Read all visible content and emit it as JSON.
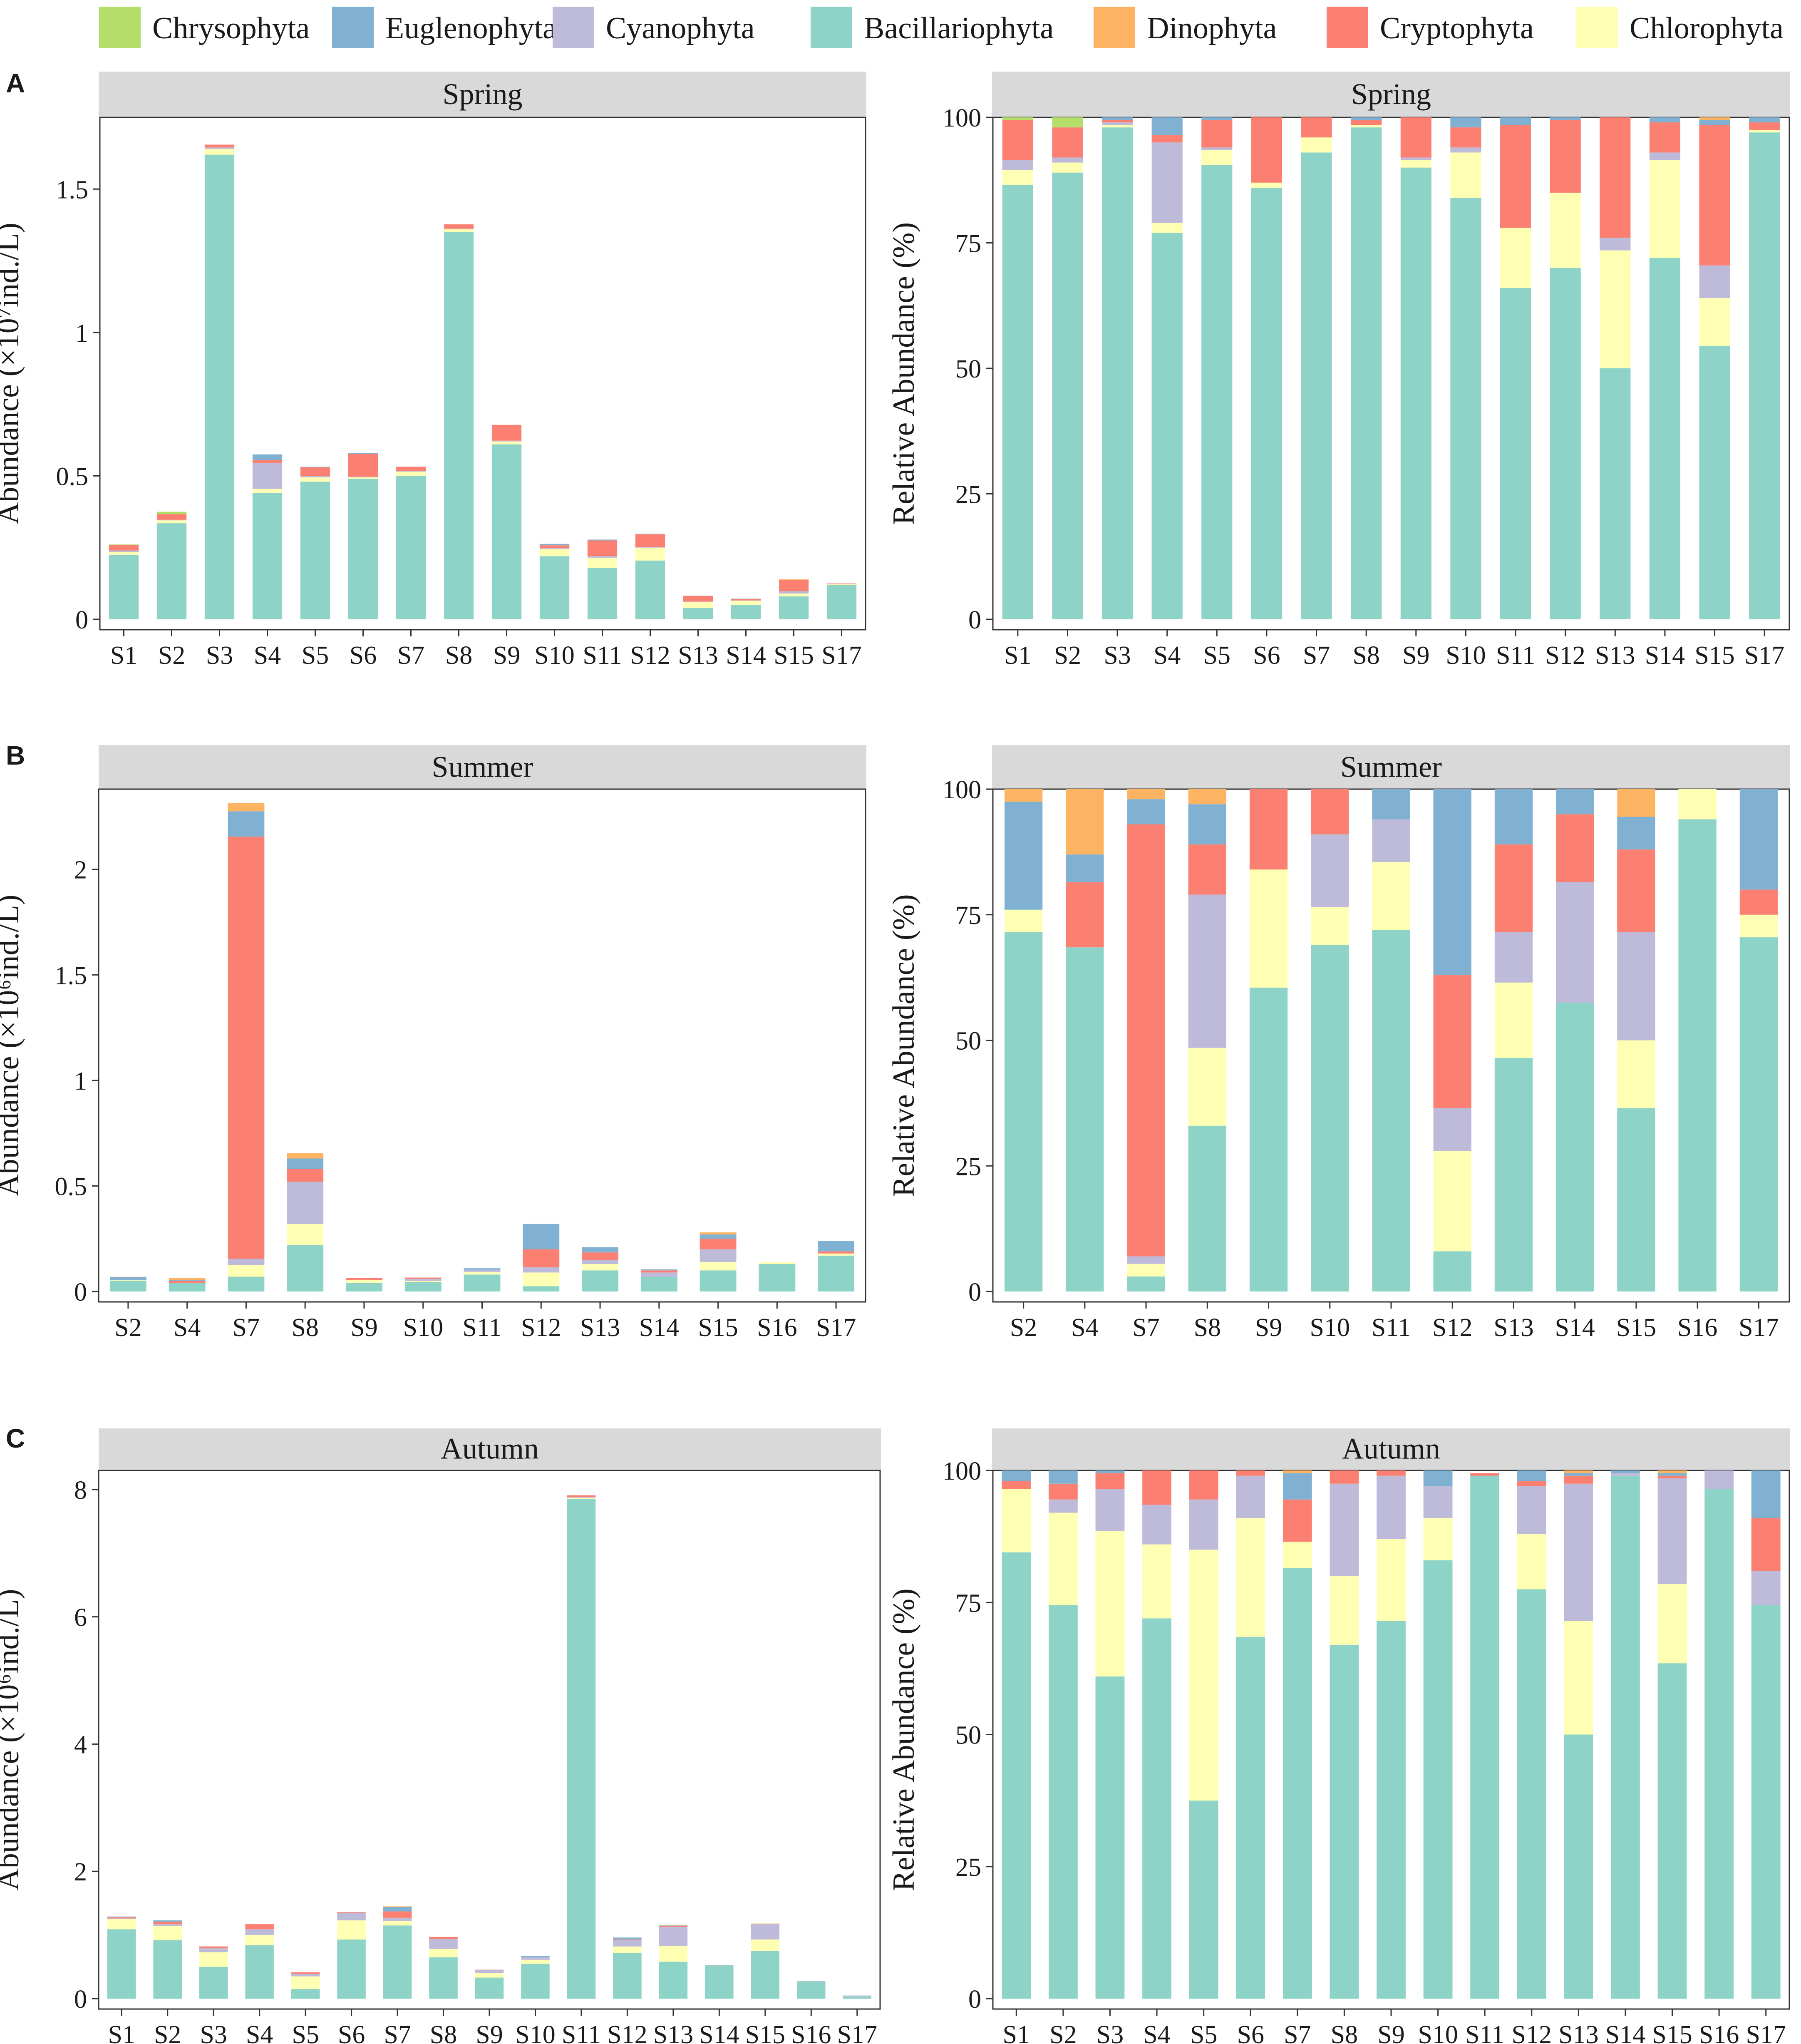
{
  "legend": [
    {
      "name": "Chrysophyta",
      "color": "#b3de69"
    },
    {
      "name": "Euglenophyta",
      "color": "#80b1d3"
    },
    {
      "name": "Cyanophyta",
      "color": "#bebada"
    },
    {
      "name": "Bacillariophyta",
      "color": "#8dd3c7"
    },
    {
      "name": "Dinophyta",
      "color": "#fdb462"
    },
    {
      "name": "Cryptophyta",
      "color": "#fb8072"
    },
    {
      "name": "Chlorophyta",
      "color": "#ffffb3"
    }
  ],
  "stack_order_bottom_to_top": [
    "Bacillariophyta",
    "Chlorophyta",
    "Cyanophyta",
    "Cryptophyta",
    "Euglenophyta",
    "Dinophyta",
    "Chrysophyta"
  ],
  "chart_data": [
    {
      "type": "bar",
      "stacked": true,
      "panel": "A",
      "title": "Spring",
      "ylabel": "Abundance (×10⁷ind./L)",
      "ylim": [
        0,
        1.75
      ],
      "yticks": [
        {
          "v": 0,
          "label": "0"
        },
        {
          "v": 0.5,
          "label": "0.5"
        },
        {
          "v": 1,
          "label": "1"
        },
        {
          "v": 1.5,
          "label": "1.5"
        }
      ],
      "categories": [
        "S1",
        "S2",
        "S3",
        "S4",
        "S5",
        "S6",
        "S7",
        "S8",
        "S9",
        "S10",
        "S11",
        "S12",
        "S13",
        "S14",
        "S15",
        "S17"
      ],
      "series": [
        {
          "name": "Bacillariophyta",
          "values": [
            0.225,
            0.335,
            1.62,
            0.44,
            0.48,
            0.49,
            0.5,
            1.35,
            0.61,
            0.22,
            0.18,
            0.205,
            0.04,
            0.05,
            0.08,
            0.12
          ]
        },
        {
          "name": "Chlorophyta",
          "values": [
            0.01,
            0.01,
            0.02,
            0.015,
            0.015,
            0.005,
            0.015,
            0.01,
            0.01,
            0.025,
            0.035,
            0.045,
            0.02,
            0.015,
            0.01,
            0.002
          ]
        },
        {
          "name": "Cyanophyta",
          "values": [
            0.005,
            0.002,
            0.005,
            0.09,
            0.005,
            0.002,
            0.002,
            0.002,
            0.003,
            0.003,
            0.005,
            0.002,
            0.002,
            0.001,
            0.008,
            0
          ]
        },
        {
          "name": "Cryptophyta",
          "values": [
            0.02,
            0.02,
            0.01,
            0.01,
            0.03,
            0.08,
            0.015,
            0.015,
            0.055,
            0.01,
            0.055,
            0.045,
            0.02,
            0.005,
            0.04,
            0.003
          ]
        },
        {
          "name": "Euglenophyta",
          "values": [
            0,
            0,
            0,
            0.02,
            0.002,
            0.002,
            0,
            0,
            0,
            0.005,
            0.003,
            0.001,
            0,
            0.001,
            0,
            0
          ]
        },
        {
          "name": "Dinophyta",
          "values": [
            0,
            0,
            0,
            0,
            0,
            0,
            0,
            0,
            0,
            0,
            0,
            0,
            0,
            0,
            0.002,
            0
          ]
        },
        {
          "name": "Chrysophyta",
          "values": [
            0.001,
            0.008,
            0,
            0,
            0,
            0,
            0,
            0,
            0,
            0,
            0,
            0,
            0,
            0,
            0,
            0
          ]
        }
      ]
    },
    {
      "type": "bar",
      "stacked": true,
      "panel": "A",
      "title": "Spring",
      "ylabel": "Relative Abundance (%)",
      "ylim": [
        0,
        100
      ],
      "yticks": [
        {
          "v": 0,
          "label": "0"
        },
        {
          "v": 25,
          "label": "25"
        },
        {
          "v": 50,
          "label": "50"
        },
        {
          "v": 75,
          "label": "75"
        },
        {
          "v": 100,
          "label": "100"
        }
      ],
      "categories": [
        "S1",
        "S2",
        "S3",
        "S4",
        "S5",
        "S6",
        "S7",
        "S8",
        "S9",
        "S10",
        "S11",
        "S12",
        "S13",
        "S14",
        "S15",
        "S17"
      ],
      "series": [
        {
          "name": "Bacillariophyta",
          "values": [
            86.5,
            89,
            98,
            77,
            90.5,
            86,
            93,
            98,
            90,
            84,
            66,
            70,
            50,
            72,
            54.5,
            97
          ]
        },
        {
          "name": "Chlorophyta",
          "values": [
            3,
            2,
            0.5,
            2,
            3,
            1,
            3,
            0.5,
            1.5,
            9,
            12,
            15,
            23.5,
            19.5,
            9.5,
            0.5
          ]
        },
        {
          "name": "Cyanophyta",
          "values": [
            2,
            1,
            0.5,
            16,
            0.5,
            0,
            0,
            0,
            0.5,
            1,
            0,
            0,
            2.5,
            1.5,
            6.5,
            0
          ]
        },
        {
          "name": "Cryptophyta",
          "values": [
            8,
            6,
            0.5,
            1.5,
            5.5,
            13,
            4,
            1,
            8,
            4,
            20.5,
            14.5,
            24,
            6,
            28,
            1.5
          ]
        },
        {
          "name": "Euglenophyta",
          "values": [
            0,
            0,
            0.5,
            3.5,
            0.5,
            0,
            0,
            0.5,
            0,
            2,
            1.5,
            0.5,
            0,
            1,
            1,
            1
          ]
        },
        {
          "name": "Dinophyta",
          "values": [
            0,
            0,
            0,
            0,
            0,
            0,
            0,
            0,
            0,
            0,
            0,
            0,
            0,
            0,
            0.5,
            0
          ]
        },
        {
          "name": "Chrysophyta",
          "values": [
            0.5,
            2,
            0,
            0,
            0,
            0,
            0,
            0,
            0,
            0,
            0,
            0,
            0,
            0,
            0,
            0
          ]
        }
      ]
    },
    {
      "type": "bar",
      "stacked": true,
      "panel": "B",
      "title": "Summer",
      "ylabel": "Abundance (×10⁶ind./L)",
      "ylim": [
        0,
        2.38
      ],
      "yticks": [
        {
          "v": 0,
          "label": "0"
        },
        {
          "v": 0.5,
          "label": "0.5"
        },
        {
          "v": 1,
          "label": "1"
        },
        {
          "v": 1.5,
          "label": "1.5"
        },
        {
          "v": 2,
          "label": "2"
        }
      ],
      "categories": [
        "S2",
        "S4",
        "S7",
        "S8",
        "S9",
        "S10",
        "S11",
        "S12",
        "S13",
        "S14",
        "S15",
        "S16",
        "S17"
      ],
      "series": [
        {
          "name": "Bacillariophyta",
          "values": [
            0.05,
            0.04,
            0.07,
            0.22,
            0.04,
            0.045,
            0.08,
            0.025,
            0.1,
            0.07,
            0.1,
            0.13,
            0.17
          ]
        },
        {
          "name": "Chlorophyta",
          "values": [
            0.003,
            0,
            0.055,
            0.1,
            0.015,
            0.005,
            0.013,
            0.065,
            0.03,
            0,
            0.04,
            0.009,
            0.01
          ]
        },
        {
          "name": "Cyanophyta",
          "values": [
            0,
            0,
            0.03,
            0.2,
            0,
            0.01,
            0.01,
            0.025,
            0.02,
            0.02,
            0.06,
            0,
            0
          ]
        },
        {
          "name": "Cryptophyta",
          "values": [
            0,
            0.01,
            2.0,
            0.06,
            0.01,
            0.006,
            0,
            0.085,
            0.035,
            0.01,
            0.05,
            0,
            0.01
          ]
        },
        {
          "name": "Euglenophyta",
          "values": [
            0.015,
            0.005,
            0.12,
            0.05,
            0,
            0,
            0.007,
            0.12,
            0.025,
            0.005,
            0.02,
            0,
            0.05
          ]
        },
        {
          "name": "Dinophyta",
          "values": [
            0.002,
            0.01,
            0.04,
            0.025,
            0,
            0,
            0,
            0,
            0,
            0,
            0.01,
            0,
            0
          ]
        },
        {
          "name": "Chrysophyta",
          "values": [
            0,
            0,
            0,
            0,
            0,
            0,
            0,
            0,
            0,
            0,
            0,
            0,
            0
          ]
        }
      ]
    },
    {
      "type": "bar",
      "stacked": true,
      "panel": "B",
      "title": "Summer",
      "ylabel": "Relative Abundance (%)",
      "ylim": [
        0,
        100
      ],
      "yticks": [
        {
          "v": 0,
          "label": "0"
        },
        {
          "v": 25,
          "label": "25"
        },
        {
          "v": 50,
          "label": "50"
        },
        {
          "v": 75,
          "label": "75"
        },
        {
          "v": 100,
          "label": "100"
        }
      ],
      "categories": [
        "S2",
        "S4",
        "S7",
        "S8",
        "S9",
        "S10",
        "S11",
        "S12",
        "S13",
        "S14",
        "S15",
        "S16",
        "S17"
      ],
      "series": [
        {
          "name": "Bacillariophyta",
          "values": [
            71.5,
            68.5,
            3,
            33,
            60.5,
            69,
            72,
            8,
            46.5,
            57.5,
            36.5,
            94,
            70.5
          ]
        },
        {
          "name": "Chlorophyta",
          "values": [
            4.5,
            0,
            2.5,
            15.5,
            23.5,
            7.5,
            13.5,
            20,
            15,
            0,
            13.5,
            6,
            4.5
          ]
        },
        {
          "name": "Cyanophyta",
          "values": [
            0,
            0,
            1.5,
            30.5,
            0,
            14.5,
            8.5,
            8.5,
            10,
            24,
            21.5,
            0,
            0
          ]
        },
        {
          "name": "Cryptophyta",
          "values": [
            0,
            13,
            86,
            10,
            16,
            9,
            0,
            26.5,
            17.5,
            13.5,
            16.5,
            0,
            5
          ]
        },
        {
          "name": "Euglenophyta",
          "values": [
            21.5,
            5.5,
            5,
            8,
            0,
            0,
            6,
            37,
            11,
            5,
            6.5,
            0,
            20
          ]
        },
        {
          "name": "Dinophyta",
          "values": [
            2.5,
            13,
            2,
            3,
            0,
            0,
            0,
            0,
            0,
            0,
            5.5,
            0,
            0
          ]
        },
        {
          "name": "Chrysophyta",
          "values": [
            0,
            0,
            0,
            0,
            0,
            0,
            0,
            0,
            0,
            0,
            0,
            0,
            0
          ]
        }
      ]
    },
    {
      "type": "bar",
      "stacked": true,
      "panel": "C",
      "title": "Autumn",
      "ylabel": "Abundance (×10⁶ind./L)",
      "ylim": [
        0,
        8.3
      ],
      "yticks": [
        {
          "v": 0,
          "label": "0"
        },
        {
          "v": 2,
          "label": "2"
        },
        {
          "v": 4,
          "label": "4"
        },
        {
          "v": 6,
          "label": "6"
        },
        {
          "v": 8,
          "label": "8"
        }
      ],
      "categories": [
        "S1",
        "S2",
        "S3",
        "S4",
        "S5",
        "S6",
        "S7",
        "S8",
        "S9",
        "S10",
        "S11",
        "S12",
        "S13",
        "S14",
        "S15",
        "S16",
        "S17"
      ],
      "series": [
        {
          "name": "Bacillariophyta",
          "values": [
            1.09,
            0.92,
            0.5,
            0.84,
            0.15,
            0.93,
            1.15,
            0.65,
            0.33,
            0.55,
            7.85,
            0.72,
            0.58,
            0.52,
            0.75,
            0.27,
            0.035
          ]
        },
        {
          "name": "Chlorophyta",
          "values": [
            0.16,
            0.22,
            0.23,
            0.16,
            0.2,
            0.3,
            0.07,
            0.13,
            0.07,
            0.06,
            0.02,
            0.1,
            0.25,
            0,
            0.18,
            0,
            0
          ]
        },
        {
          "name": "Cyanophyta",
          "values": [
            0.01,
            0.03,
            0.06,
            0.09,
            0.04,
            0.12,
            0.05,
            0.16,
            0.05,
            0.04,
            0.01,
            0.1,
            0.3,
            0.01,
            0.24,
            0.01,
            0.003
          ]
        },
        {
          "name": "Cryptophyta",
          "values": [
            0.02,
            0.04,
            0.03,
            0.08,
            0.025,
            0.01,
            0.1,
            0.03,
            0.005,
            0,
            0.03,
            0.01,
            0.015,
            0,
            0.005,
            0,
            0.005
          ]
        },
        {
          "name": "Euglenophyta",
          "values": [
            0.01,
            0.02,
            0,
            0,
            0,
            0,
            0.07,
            0,
            0,
            0.02,
            0,
            0.03,
            0.005,
            0,
            0,
            0,
            0.005
          ]
        },
        {
          "name": "Dinophyta",
          "values": [
            0,
            0,
            0,
            0,
            0,
            0,
            0.01,
            0,
            0,
            0,
            0,
            0,
            0.01,
            0,
            0.005,
            0,
            0
          ]
        },
        {
          "name": "Chrysophyta",
          "values": [
            0,
            0,
            0,
            0,
            0,
            0,
            0,
            0,
            0,
            0,
            0,
            0,
            0,
            0,
            0,
            0,
            0
          ]
        }
      ]
    },
    {
      "type": "bar",
      "stacked": true,
      "panel": "C",
      "title": "Autumn",
      "ylabel": "Relative Abundance (%)",
      "ylim": [
        0,
        100
      ],
      "yticks": [
        {
          "v": 0,
          "label": "0"
        },
        {
          "v": 25,
          "label": "25"
        },
        {
          "v": 50,
          "label": "50"
        },
        {
          "v": 75,
          "label": "75"
        },
        {
          "v": 100,
          "label": "100"
        }
      ],
      "categories": [
        "S1",
        "S2",
        "S3",
        "S4",
        "S5",
        "S6",
        "S7",
        "S8",
        "S9",
        "S10",
        "S11",
        "S12",
        "S13",
        "S14",
        "S15",
        "S16",
        "S17"
      ],
      "series": [
        {
          "name": "Bacillariophyta",
          "values": [
            84.5,
            74.5,
            61,
            72,
            37.5,
            68.5,
            81.5,
            67,
            71.5,
            83,
            99,
            77.5,
            50,
            99,
            63.5,
            96.5,
            74.5
          ]
        },
        {
          "name": "Chlorophyta",
          "values": [
            12,
            17.5,
            27.5,
            14,
            47.5,
            22.5,
            5,
            13,
            15.5,
            8,
            0,
            10.5,
            21.5,
            0,
            15,
            0,
            0
          ]
        },
        {
          "name": "Cyanophyta",
          "values": [
            0,
            2.5,
            8,
            7.5,
            9.5,
            8,
            0,
            17.5,
            12,
            6,
            0,
            9,
            26,
            0.5,
            20,
            3.5,
            6.5
          ]
        },
        {
          "name": "Cryptophyta",
          "values": [
            1.5,
            3,
            3,
            6.5,
            5.5,
            1,
            8,
            2.5,
            1,
            0,
            0.5,
            1,
            1.5,
            0,
            0.5,
            0,
            10
          ]
        },
        {
          "name": "Euglenophyta",
          "values": [
            2,
            2.5,
            0.5,
            0,
            0,
            0,
            5,
            0,
            0,
            3,
            0,
            2,
            0.5,
            0.5,
            0.5,
            0,
            9
          ]
        },
        {
          "name": "Dinophyta",
          "values": [
            0,
            0,
            0,
            0,
            0,
            0,
            0.5,
            0,
            0,
            0,
            0,
            0,
            0.5,
            0,
            0.5,
            0,
            0
          ]
        },
        {
          "name": "Chrysophyta",
          "values": [
            0,
            0,
            0,
            0,
            0,
            0,
            0,
            0,
            0,
            0,
            0,
            0,
            0,
            0,
            0,
            0,
            0
          ]
        }
      ]
    }
  ],
  "panel_labels": [
    "A",
    "B",
    "C"
  ]
}
